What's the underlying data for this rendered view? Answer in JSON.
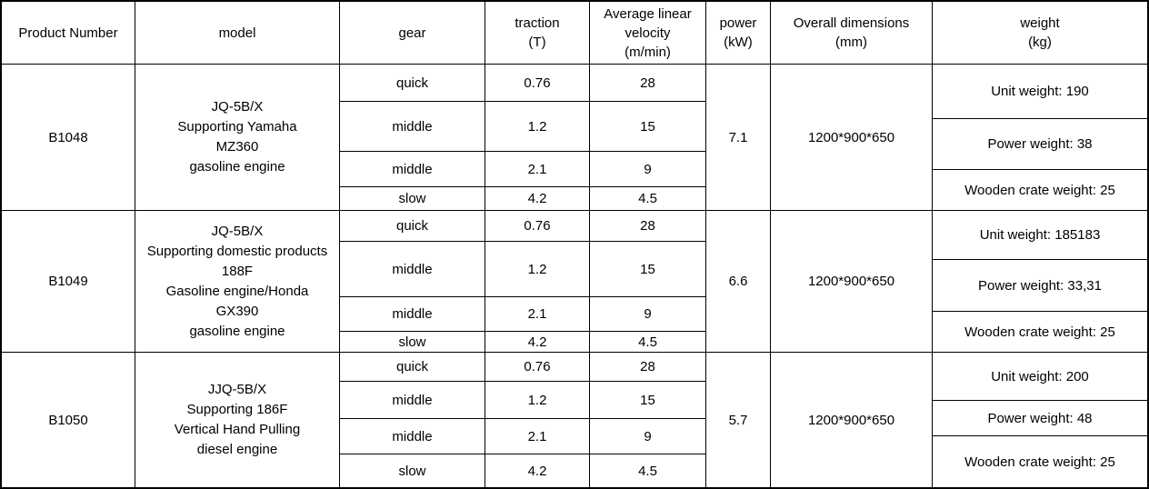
{
  "colors": {
    "border": "#000000",
    "background": "#ffffff",
    "text": "#000000"
  },
  "table": {
    "headers": [
      "Product Number",
      "model",
      "gear",
      "traction\n(T)",
      "Average linear\nvelocity\n(m/min)",
      "power\n(kW)",
      "Overall dimensions\n(mm)",
      "weight\n(kg)"
    ],
    "products": [
      {
        "product_number": "B1048",
        "model": "JQ-5B/X\nSupporting Yamaha\nMZ360\ngasoline engine",
        "gears": [
          {
            "gear": "quick",
            "traction": "0.76",
            "velocity": "28"
          },
          {
            "gear": "middle",
            "traction": "1.2",
            "velocity": "15"
          },
          {
            "gear": "middle",
            "traction": "2.1",
            "velocity": "9"
          },
          {
            "gear": "slow",
            "traction": "4.2",
            "velocity": "4.5"
          }
        ],
        "power": "7.1",
        "dimensions": "1200*900*650",
        "weights": [
          "Unit weight: 190",
          "Power weight: 38",
          "Wooden crate weight: 25"
        ]
      },
      {
        "product_number": "B1049",
        "model": "JQ-5B/X\nSupporting domestic products\n188F\nGasoline engine/Honda\nGX390\ngasoline engine",
        "gears": [
          {
            "gear": "quick",
            "traction": "0.76",
            "velocity": "28"
          },
          {
            "gear": "middle",
            "traction": "1.2",
            "velocity": "15"
          },
          {
            "gear": "middle",
            "traction": "2.1",
            "velocity": "9"
          },
          {
            "gear": "slow",
            "traction": "4.2",
            "velocity": "4.5"
          }
        ],
        "power": "6.6",
        "dimensions": "1200*900*650",
        "weights": [
          "Unit weight: 185183",
          "Power weight: 33,31",
          "Wooden crate weight: 25"
        ]
      },
      {
        "product_number": "B1050",
        "model": "JJQ-5B/X\nSupporting 186F\nVertical Hand Pulling\ndiesel engine",
        "gears": [
          {
            "gear": "quick",
            "traction": "0.76",
            "velocity": "28"
          },
          {
            "gear": "middle",
            "traction": "1.2",
            "velocity": "15"
          },
          {
            "gear": "middle",
            "traction": "2.1",
            "velocity": "9"
          },
          {
            "gear": "slow",
            "traction": "4.2",
            "velocity": "4.5"
          }
        ],
        "power": "5.7",
        "dimensions": "1200*900*650",
        "weights": [
          "Unit weight: 200",
          "Power weight: 48",
          "Wooden crate weight: 25"
        ]
      }
    ]
  }
}
